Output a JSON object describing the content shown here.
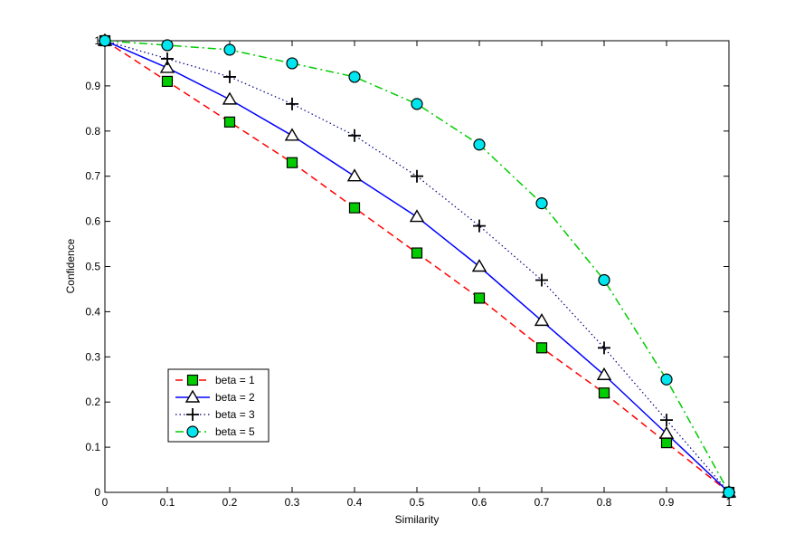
{
  "chart_data": {
    "type": "line",
    "xlabel": "Similarity",
    "ylabel": "Confidence",
    "xlim": [
      0,
      1
    ],
    "ylim": [
      0,
      1
    ],
    "xticks": [
      "0",
      "0.1",
      "0.2",
      "0.3",
      "0.4",
      "0.5",
      "0.6",
      "0.7",
      "0.8",
      "0.9",
      "1"
    ],
    "yticks": [
      "0",
      "0.1",
      "0.2",
      "0.3",
      "0.4",
      "0.5",
      "0.6",
      "0.7",
      "0.8",
      "0.9",
      "1"
    ],
    "grid": false,
    "legend_position": "bottom-left",
    "x": [
      0,
      0.1,
      0.2,
      0.3,
      0.4,
      0.5,
      0.6,
      0.7,
      0.8,
      0.9,
      1.0
    ],
    "series": [
      {
        "name": "beta = 1",
        "values": [
          1.0,
          0.91,
          0.82,
          0.73,
          0.63,
          0.53,
          0.43,
          0.32,
          0.22,
          0.11,
          0.0
        ],
        "color": "#ff0000",
        "line_style": "dashed",
        "marker": "square",
        "marker_fill": "#00cc00"
      },
      {
        "name": "beta = 2",
        "values": [
          1.0,
          0.94,
          0.87,
          0.79,
          0.7,
          0.61,
          0.5,
          0.38,
          0.26,
          0.13,
          0.0
        ],
        "color": "#0000ff",
        "line_style": "solid",
        "marker": "triangle",
        "marker_fill": "#ffffff"
      },
      {
        "name": "beta = 3",
        "values": [
          1.0,
          0.96,
          0.92,
          0.86,
          0.79,
          0.7,
          0.59,
          0.47,
          0.32,
          0.16,
          0.0
        ],
        "color": "#000080",
        "line_style": "dotted",
        "marker": "plus",
        "marker_fill": "none"
      },
      {
        "name": "beta = 5",
        "values": [
          1.0,
          0.99,
          0.98,
          0.95,
          0.92,
          0.86,
          0.77,
          0.64,
          0.47,
          0.25,
          0.0
        ],
        "color": "#00cc00",
        "line_style": "dashdot",
        "marker": "circle",
        "marker_fill": "#00e5ee"
      }
    ]
  }
}
